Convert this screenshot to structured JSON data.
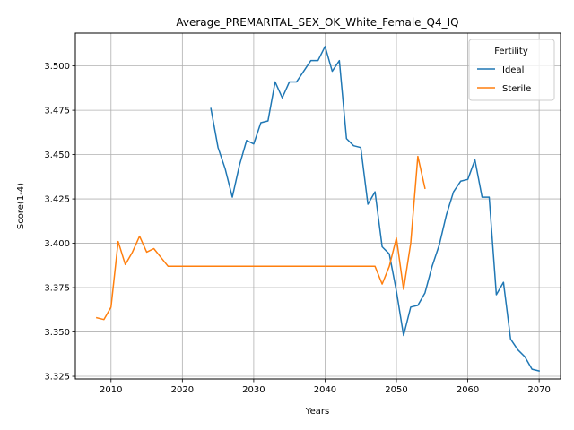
{
  "chart_data": {
    "type": "line",
    "title": "Average_PREMARITAL_SEX_OK_White_Female_Q4_IQ",
    "xlabel": "Years",
    "ylabel": "Score(1-4)",
    "xlim": [
      2005,
      2073
    ],
    "ylim": [
      3.3235,
      3.5185
    ],
    "xticks": [
      2010,
      2020,
      2030,
      2040,
      2050,
      2060,
      2070
    ],
    "yticks": [
      3.325,
      3.35,
      3.375,
      3.4,
      3.425,
      3.45,
      3.475,
      3.5
    ],
    "ytick_labels": [
      "3.325",
      "3.350",
      "3.375",
      "3.400",
      "3.425",
      "3.450",
      "3.475",
      "3.500"
    ],
    "grid": true,
    "legend": {
      "title": "Fertility",
      "position": "top-right"
    },
    "series": [
      {
        "name": "Ideal",
        "color": "#1f77b4",
        "x": [
          2024,
          2025,
          2026,
          2027,
          2028,
          2029,
          2030,
          2031,
          2032,
          2033,
          2034,
          2035,
          2036,
          2037,
          2038,
          2039,
          2040,
          2041,
          2042,
          2043,
          2044,
          2045,
          2046,
          2047,
          2048,
          2049,
          2050,
          2051,
          2052,
          2053,
          2054,
          2055,
          2056,
          2057,
          2058,
          2059,
          2060,
          2061,
          2062,
          2063,
          2064,
          2065,
          2066,
          2067,
          2068,
          2069,
          2070
        ],
        "y": [
          3.476,
          3.454,
          3.442,
          3.426,
          3.444,
          3.458,
          3.456,
          3.468,
          3.469,
          3.491,
          3.482,
          3.491,
          3.491,
          3.497,
          3.503,
          3.503,
          3.511,
          3.497,
          3.503,
          3.459,
          3.455,
          3.454,
          3.422,
          3.429,
          3.398,
          3.394,
          3.373,
          3.348,
          3.364,
          3.365,
          3.372,
          3.387,
          3.399,
          3.416,
          3.429,
          3.435,
          3.436,
          3.447,
          3.426,
          3.426,
          3.371,
          3.378,
          3.346,
          3.34,
          3.336,
          3.329,
          3.328
        ]
      },
      {
        "name": "Sterile",
        "color": "#ff7f0e",
        "x": [
          2008,
          2009,
          2010,
          2011,
          2012,
          2013,
          2014,
          2015,
          2016,
          2017,
          2018,
          2019,
          2020,
          2021,
          2022,
          2023,
          2024,
          2025,
          2026,
          2027,
          2028,
          2029,
          2030,
          2031,
          2032,
          2033,
          2034,
          2035,
          2036,
          2037,
          2038,
          2039,
          2040,
          2041,
          2042,
          2043,
          2044,
          2045,
          2046,
          2047,
          2048,
          2049,
          2050,
          2051,
          2052,
          2053,
          2054
        ],
        "y": [
          3.358,
          3.357,
          3.364,
          3.401,
          3.388,
          3.395,
          3.404,
          3.395,
          3.397,
          3.392,
          3.387,
          3.387,
          3.387,
          3.387,
          3.387,
          3.387,
          3.387,
          3.387,
          3.387,
          3.387,
          3.387,
          3.387,
          3.387,
          3.387,
          3.387,
          3.387,
          3.387,
          3.387,
          3.387,
          3.387,
          3.387,
          3.387,
          3.387,
          3.387,
          3.387,
          3.387,
          3.387,
          3.387,
          3.387,
          3.387,
          3.377,
          3.387,
          3.403,
          3.374,
          3.4,
          3.449,
          3.431
        ]
      }
    ]
  }
}
